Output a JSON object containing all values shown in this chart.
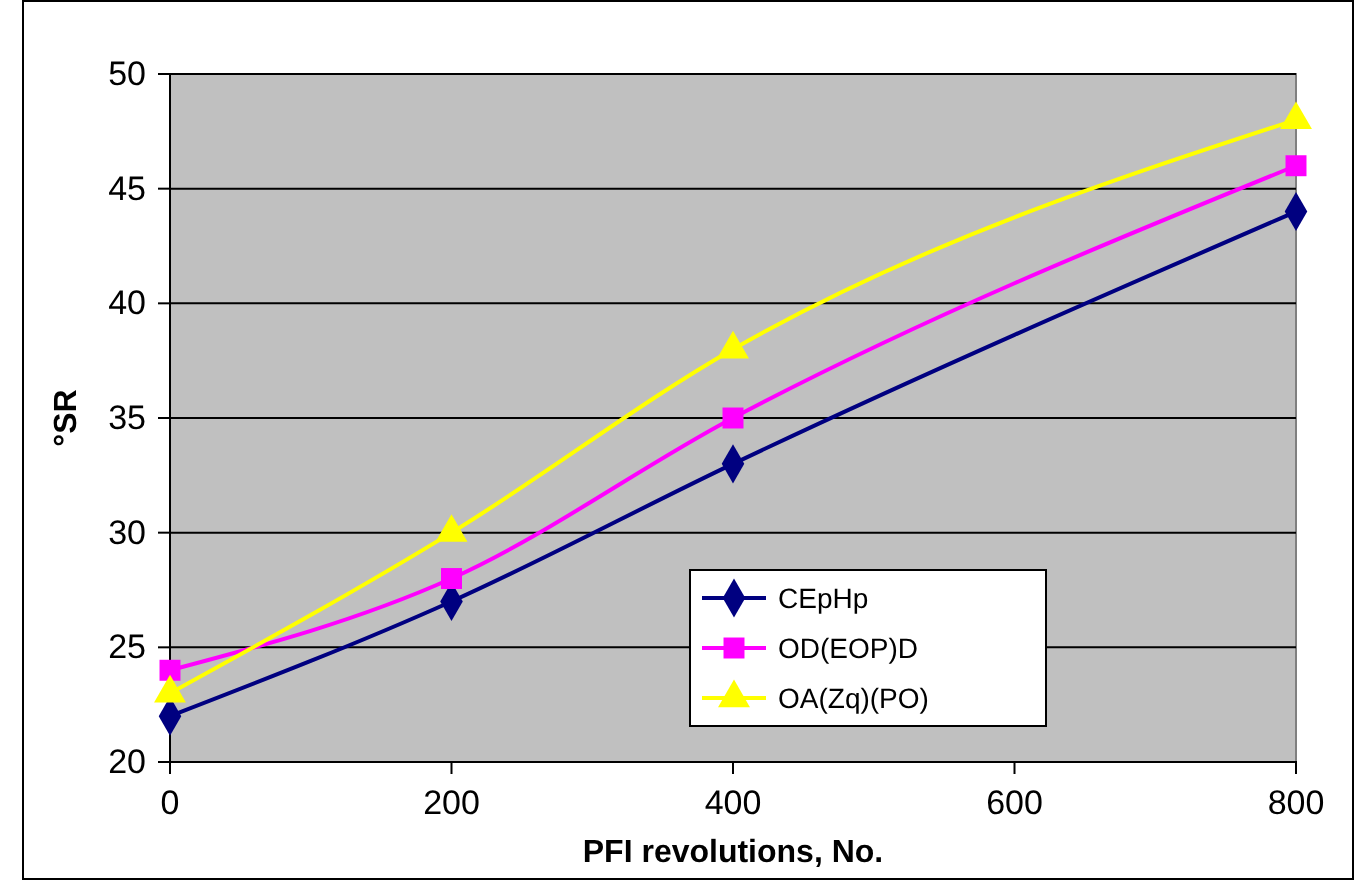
{
  "chart_data": {
    "type": "line",
    "xlabel": "PFI revolutions, No.",
    "ylabel": "°SR",
    "x": [
      0,
      200,
      400,
      800
    ],
    "series": [
      {
        "name": "CEpHp",
        "color": "#000080",
        "marker": "diamond",
        "values": [
          22,
          27,
          33,
          44
        ]
      },
      {
        "name": "OD(EOP)D",
        "color": "#ff00ff",
        "marker": "square",
        "values": [
          24,
          28,
          35,
          46
        ]
      },
      {
        "name": "OA(Zq)(PO)",
        "color": "#ffff00",
        "marker": "triangle",
        "values": [
          23,
          30,
          38,
          48
        ]
      }
    ],
    "xlim": [
      0,
      800
    ],
    "xticks": [
      0,
      200,
      400,
      600,
      800
    ],
    "ylim": [
      20,
      50
    ],
    "yticks": [
      20,
      25,
      30,
      35,
      40,
      45,
      50
    ],
    "grid": "y",
    "legend": "bottom right",
    "line_style": "solid"
  }
}
